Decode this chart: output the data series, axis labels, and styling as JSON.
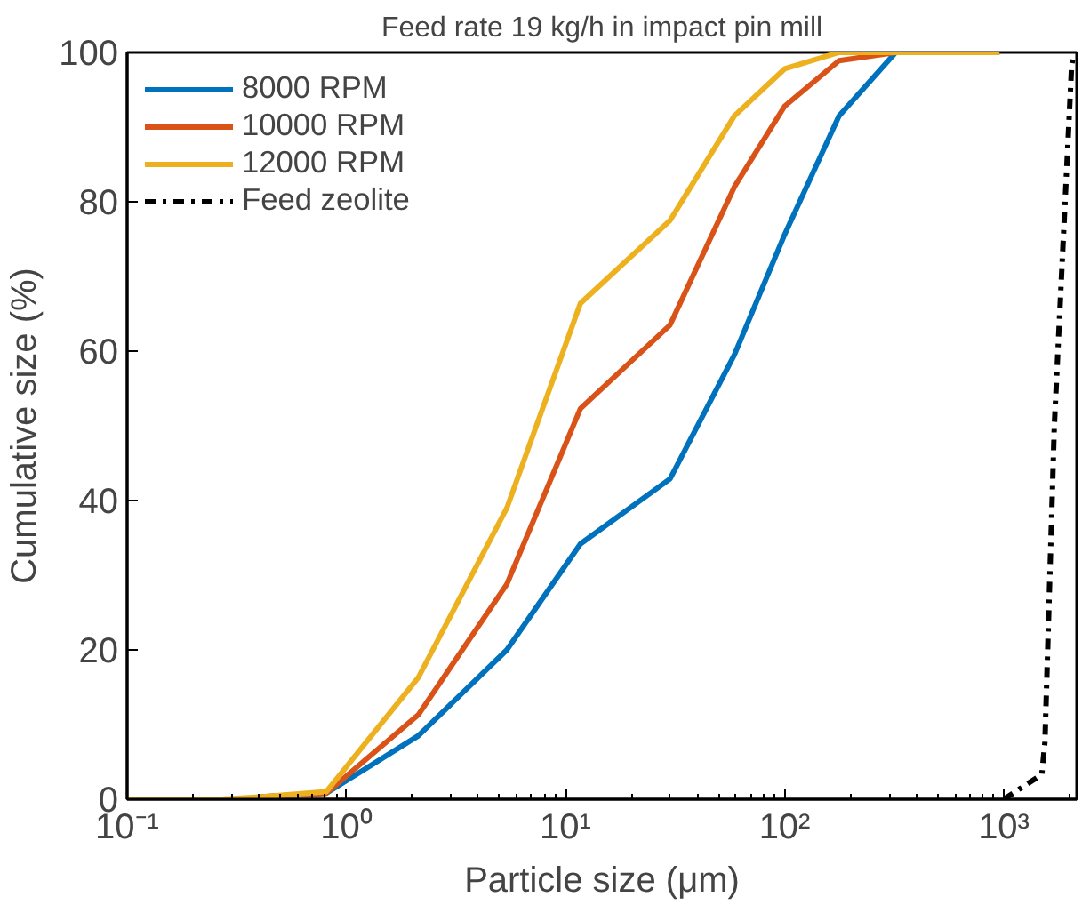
{
  "chart_data": {
    "type": "line",
    "title": "Feed rate 19 kg/h in impact pin mill",
    "xlabel": "Particle size (μm)",
    "ylabel": "Cumulative size (%)",
    "log": "x",
    "xlim": [
      0.1,
      2150
    ],
    "ylim": [
      0,
      100
    ],
    "xticks": [
      {
        "value": 0.1,
        "label": "10⁻¹"
      },
      {
        "value": 1,
        "label": "10⁰"
      },
      {
        "value": 10,
        "label": "10¹"
      },
      {
        "value": 100,
        "label": "10²"
      },
      {
        "value": 1000,
        "label": "10³"
      }
    ],
    "yticks": [
      0,
      20,
      40,
      60,
      80,
      100
    ],
    "grid": false,
    "legend": "top left",
    "marker": "none",
    "x": [
      0.1,
      0.27,
      0.4,
      0.81,
      2.13,
      5.4,
      11.7,
      30,
      59,
      100,
      177,
      321,
      955
    ],
    "series": [
      {
        "name": "8000 RPM",
        "color": "#0072bd",
        "values": [
          null,
          null,
          0.3,
          0.8,
          8.5,
          20,
          34.2,
          42.9,
          59.5,
          75.6,
          91.5,
          100,
          100
        ]
      },
      {
        "name": "10000 RPM",
        "color": "#d95319",
        "values": [
          null,
          null,
          0.3,
          0.8,
          11.3,
          28.8,
          52.3,
          63.5,
          82,
          92.8,
          98.9,
          100,
          100
        ]
      },
      {
        "name": "12000 RPM",
        "color": "#edb120",
        "values": [
          0,
          0,
          0.3,
          1.0,
          16.3,
          39,
          66.4,
          77.5,
          91.5,
          97.8,
          100,
          100,
          100
        ]
      },
      {
        "name": "Feed zeolite",
        "color": "#000000",
        "line_style": "dashdot",
        "x": [
          1000,
          1490,
          1540,
          1700,
          2040,
          2090
        ],
        "values": [
          0,
          3.3,
          7.6,
          50,
          98.3,
          100
        ]
      }
    ]
  }
}
